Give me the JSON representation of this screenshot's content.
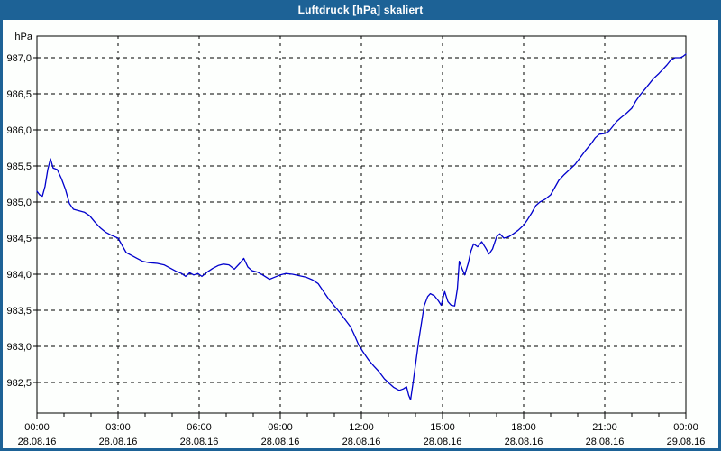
{
  "window": {
    "title": "Luftdruck [hPa] skaliert",
    "title_bar_color": "#1d6296",
    "border_color": "#1d6296",
    "background_color": "#fdfffd"
  },
  "chart_data": {
    "type": "line",
    "title": "Luftdruck [hPa] skaliert",
    "unit_label": "hPa",
    "xlabel": "",
    "ylabel": "hPa",
    "line_color": "#0000cc",
    "grid": true,
    "grid_color": "#000000",
    "axis_color": "#000000",
    "ylim": [
      982.075,
      987.3
    ],
    "xlim_hours": [
      0,
      24
    ],
    "y_ticks": [
      {
        "value": 987.0,
        "label": "987,0"
      },
      {
        "value": 986.5,
        "label": "986,5"
      },
      {
        "value": 986.0,
        "label": "986,0"
      },
      {
        "value": 985.5,
        "label": "985,5"
      },
      {
        "value": 985.0,
        "label": "985,0"
      },
      {
        "value": 984.5,
        "label": "984,5"
      },
      {
        "value": 984.0,
        "label": "984,0"
      },
      {
        "value": 983.5,
        "label": "983,5"
      },
      {
        "value": 983.0,
        "label": "983,0"
      },
      {
        "value": 982.5,
        "label": "982,5"
      }
    ],
    "x_ticks": [
      {
        "hour": 0,
        "time": "00:00",
        "date": "28.08.16"
      },
      {
        "hour": 3,
        "time": "03:00",
        "date": "28.08.16"
      },
      {
        "hour": 6,
        "time": "06:00",
        "date": "28.08.16"
      },
      {
        "hour": 9,
        "time": "09:00",
        "date": "28.08.16"
      },
      {
        "hour": 12,
        "time": "12:00",
        "date": "28.08.16"
      },
      {
        "hour": 15,
        "time": "15:00",
        "date": "28.08.16"
      },
      {
        "hour": 18,
        "time": "18:00",
        "date": "28.08.16"
      },
      {
        "hour": 21,
        "time": "21:00",
        "date": "28.08.16"
      },
      {
        "hour": 24,
        "time": "00:00",
        "date": "29.08.16"
      }
    ],
    "minor_x_tick_interval_hours": 1,
    "series": [
      {
        "name": "Luftdruck",
        "points": [
          [
            0,
            985.15
          ],
          [
            0.1,
            985.1
          ],
          [
            0.2,
            985.08
          ],
          [
            0.3,
            985.22
          ],
          [
            0.4,
            985.45
          ],
          [
            0.5,
            985.6
          ],
          [
            0.6,
            985.47
          ],
          [
            0.75,
            985.45
          ],
          [
            0.9,
            985.33
          ],
          [
            1.05,
            985.18
          ],
          [
            1.2,
            984.98
          ],
          [
            1.35,
            984.9
          ],
          [
            1.55,
            984.88
          ],
          [
            1.75,
            984.86
          ],
          [
            1.95,
            984.81
          ],
          [
            2.15,
            984.72
          ],
          [
            2.35,
            984.64
          ],
          [
            2.55,
            984.58
          ],
          [
            2.75,
            984.54
          ],
          [
            3,
            984.5
          ],
          [
            3.15,
            984.4
          ],
          [
            3.3,
            984.3
          ],
          [
            3.5,
            984.26
          ],
          [
            3.7,
            984.22
          ],
          [
            3.9,
            984.18
          ],
          [
            4.15,
            984.16
          ],
          [
            4.45,
            984.15
          ],
          [
            4.7,
            984.13
          ],
          [
            4.95,
            984.08
          ],
          [
            5.15,
            984.04
          ],
          [
            5.35,
            984.01
          ],
          [
            5.5,
            983.97
          ],
          [
            5.65,
            984.02
          ],
          [
            5.8,
            983.99
          ],
          [
            5.95,
            984.01
          ],
          [
            6.1,
            983.97
          ],
          [
            6.3,
            984.03
          ],
          [
            6.5,
            984.08
          ],
          [
            6.7,
            984.12
          ],
          [
            6.9,
            984.14
          ],
          [
            7.1,
            984.13
          ],
          [
            7.3,
            984.07
          ],
          [
            7.5,
            984.15
          ],
          [
            7.65,
            984.22
          ],
          [
            7.8,
            984.1
          ],
          [
            7.95,
            984.05
          ],
          [
            8.15,
            984.03
          ],
          [
            8.35,
            983.99
          ],
          [
            8.6,
            983.93
          ],
          [
            8.8,
            983.96
          ],
          [
            9,
            983.99
          ],
          [
            9.2,
            984.01
          ],
          [
            9.45,
            984
          ],
          [
            9.7,
            983.98
          ],
          [
            9.95,
            983.96
          ],
          [
            10.2,
            983.92
          ],
          [
            10.4,
            983.87
          ],
          [
            10.6,
            983.76
          ],
          [
            10.8,
            983.65
          ],
          [
            11,
            983.56
          ],
          [
            11.2,
            983.47
          ],
          [
            11.4,
            983.37
          ],
          [
            11.6,
            983.27
          ],
          [
            11.75,
            983.15
          ],
          [
            11.9,
            983.02
          ],
          [
            12.05,
            982.93
          ],
          [
            12.25,
            982.82
          ],
          [
            12.45,
            982.73
          ],
          [
            12.65,
            982.65
          ],
          [
            12.85,
            982.55
          ],
          [
            13.05,
            982.48
          ],
          [
            13.2,
            982.43
          ],
          [
            13.4,
            982.39
          ],
          [
            13.55,
            982.41
          ],
          [
            13.67,
            982.44
          ],
          [
            13.75,
            982.32
          ],
          [
            13.82,
            982.26
          ],
          [
            13.92,
            982.52
          ],
          [
            14.02,
            982.8
          ],
          [
            14.12,
            983.08
          ],
          [
            14.22,
            983.32
          ],
          [
            14.32,
            983.56
          ],
          [
            14.45,
            983.69
          ],
          [
            14.55,
            983.73
          ],
          [
            14.7,
            983.7
          ],
          [
            14.85,
            983.63
          ],
          [
            14.95,
            983.57
          ],
          [
            15.08,
            983.76
          ],
          [
            15.2,
            983.62
          ],
          [
            15.32,
            983.57
          ],
          [
            15.45,
            983.56
          ],
          [
            15.55,
            983.8
          ],
          [
            15.62,
            984.18
          ],
          [
            15.72,
            984.08
          ],
          [
            15.82,
            983.99
          ],
          [
            15.95,
            984.15
          ],
          [
            16.05,
            984.32
          ],
          [
            16.15,
            984.42
          ],
          [
            16.3,
            984.38
          ],
          [
            16.45,
            984.45
          ],
          [
            16.6,
            984.36
          ],
          [
            16.72,
            984.28
          ],
          [
            16.85,
            984.35
          ],
          [
            17,
            984.52
          ],
          [
            17.12,
            984.56
          ],
          [
            17.27,
            984.5
          ],
          [
            17.45,
            984.52
          ],
          [
            17.62,
            984.56
          ],
          [
            17.8,
            984.61
          ],
          [
            18,
            984.68
          ],
          [
            18.15,
            984.76
          ],
          [
            18.3,
            984.85
          ],
          [
            18.45,
            984.95
          ],
          [
            18.6,
            985
          ],
          [
            18.8,
            985.04
          ],
          [
            19,
            985.1
          ],
          [
            19.15,
            985.2
          ],
          [
            19.3,
            985.3
          ],
          [
            19.5,
            985.38
          ],
          [
            19.7,
            985.45
          ],
          [
            19.9,
            985.52
          ],
          [
            20.1,
            985.62
          ],
          [
            20.3,
            985.72
          ],
          [
            20.5,
            985.81
          ],
          [
            20.65,
            985.89
          ],
          [
            20.8,
            985.94
          ],
          [
            21,
            985.95
          ],
          [
            21.15,
            985.98
          ],
          [
            21.3,
            986.05
          ],
          [
            21.45,
            986.12
          ],
          [
            21.6,
            986.17
          ],
          [
            21.8,
            986.23
          ],
          [
            22,
            986.3
          ],
          [
            22.15,
            986.4
          ],
          [
            22.3,
            986.48
          ],
          [
            22.5,
            986.57
          ],
          [
            22.65,
            986.64
          ],
          [
            22.8,
            986.71
          ],
          [
            23,
            986.78
          ],
          [
            23.15,
            986.84
          ],
          [
            23.3,
            986.9
          ],
          [
            23.45,
            986.97
          ],
          [
            23.6,
            987
          ],
          [
            23.8,
            987
          ],
          [
            23.9,
            987.02
          ],
          [
            24,
            987.05
          ]
        ]
      }
    ]
  }
}
